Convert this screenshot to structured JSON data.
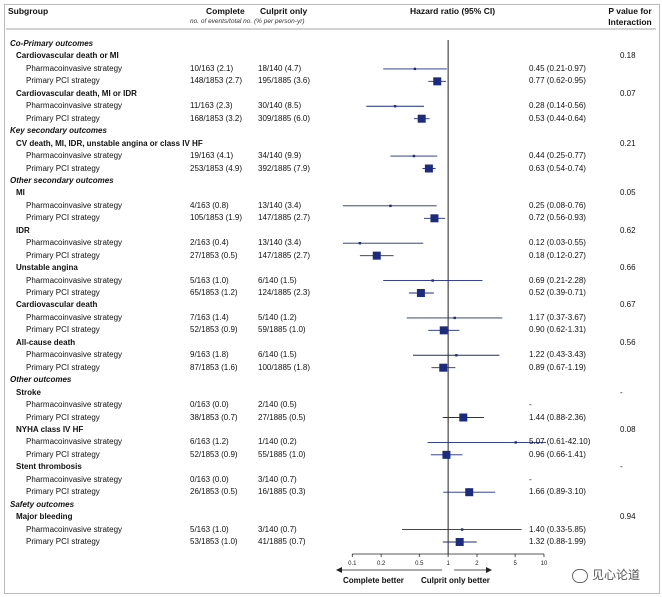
{
  "headers": {
    "subgroup": "Subgroup",
    "complete": "Complete",
    "culprit": "Culprit only",
    "hr": "Hazard ratio (95% CI)",
    "pval": "P value for Interaction",
    "pval_line1": "P value for",
    "pval_line2": "Interaction",
    "units": "no. of events/total no. (% per person-yr)"
  },
  "axis_labels": {
    "left": "Complete better",
    "right": "Culprit only better"
  },
  "watermark": "见心论道",
  "chart_data": {
    "type": "forest",
    "title": "",
    "xlabel": "Hazard ratio (95% CI)",
    "xscale": "log",
    "xlim": [
      0.08,
      10.5
    ],
    "ticks": [
      0.1,
      0.2,
      0.5,
      1,
      2,
      5,
      10
    ],
    "tick_labels": [
      "0.1",
      "0.2",
      "0.5",
      "1",
      "2",
      "5",
      "10"
    ],
    "reference_line": 1,
    "rows": [
      {
        "kind": "section",
        "label": "Co-Primary outcomes"
      },
      {
        "kind": "group",
        "label": "Cardiovascular death or MI",
        "p": "0.18"
      },
      {
        "kind": "data",
        "label": "Pharmacoinvasive strategy",
        "complete": "10/163 (2.1)",
        "culprit": "18/140 (4.7)",
        "hr": 0.45,
        "lo": 0.21,
        "hi": 0.97,
        "hr_text": "0.45 (0.21-0.97)",
        "size": "small"
      },
      {
        "kind": "data",
        "label": "Primary PCI strategy",
        "complete": "148/1853 (2.7)",
        "culprit": "195/1885 (3.6)",
        "hr": 0.77,
        "lo": 0.62,
        "hi": 0.95,
        "hr_text": "0.77 (0.62-0.95)",
        "size": "large"
      },
      {
        "kind": "group",
        "label": "Cardiovascular death, MI or IDR",
        "p": "0.07"
      },
      {
        "kind": "data",
        "label": "Pharmacoinvasive strategy",
        "complete": "11/163 (2.3)",
        "culprit": "30/140 (8.5)",
        "hr": 0.28,
        "lo": 0.14,
        "hi": 0.56,
        "hr_text": "0.28 (0.14-0.56)",
        "size": "small"
      },
      {
        "kind": "data",
        "label": "Primary PCI strategy",
        "complete": "168/1853 (3.2)",
        "culprit": "309/1885 (6.0)",
        "hr": 0.53,
        "lo": 0.44,
        "hi": 0.64,
        "hr_text": "0.53 (0.44-0.64)",
        "size": "large"
      },
      {
        "kind": "section",
        "label": "Key secondary outcomes"
      },
      {
        "kind": "group",
        "label": "CV death, MI, IDR, unstable angina or class IV HF",
        "p": "0.21"
      },
      {
        "kind": "data",
        "label": "Pharmacoinvasive strategy",
        "complete": "19/163 (4.1)",
        "culprit": "34/140 (9.9)",
        "hr": 0.44,
        "lo": 0.25,
        "hi": 0.77,
        "hr_text": "0.44 (0.25-0.77)",
        "size": "small"
      },
      {
        "kind": "data",
        "label": "Primary PCI strategy",
        "complete": "253/1853 (4.9)",
        "culprit": "392/1885 (7.9)",
        "hr": 0.63,
        "lo": 0.54,
        "hi": 0.74,
        "hr_text": "0.63 (0.54-0.74)",
        "size": "large"
      },
      {
        "kind": "section",
        "label": "Other secondary outcomes"
      },
      {
        "kind": "group",
        "label": "MI",
        "p": "0.05"
      },
      {
        "kind": "data",
        "label": "Pharmacoinvasive strategy",
        "complete": "4/163 (0.8)",
        "culprit": "13/140 (3.4)",
        "hr": 0.25,
        "lo": 0.08,
        "hi": 0.76,
        "hr_text": "0.25 (0.08-0.76)",
        "size": "small"
      },
      {
        "kind": "data",
        "label": "Primary PCI strategy",
        "complete": "105/1853 (1.9)",
        "culprit": "147/1885 (2.7)",
        "hr": 0.72,
        "lo": 0.56,
        "hi": 0.93,
        "hr_text": "0.72 (0.56-0.93)",
        "size": "large"
      },
      {
        "kind": "group",
        "label": "IDR",
        "p": "0.62"
      },
      {
        "kind": "data",
        "label": "Pharmacoinvasive strategy",
        "complete": "2/163 (0.4)",
        "culprit": "13/140 (3.4)",
        "hr": 0.12,
        "lo": 0.03,
        "hi": 0.55,
        "hr_text": "0.12 (0.03-0.55)",
        "size": "small"
      },
      {
        "kind": "data",
        "label": "Primary PCI strategy",
        "complete": "27/1853 (0.5)",
        "culprit": "147/1885 (2.7)",
        "hr": 0.18,
        "lo": 0.12,
        "hi": 0.27,
        "hr_text": "0.18 (0.12-0.27)",
        "size": "large"
      },
      {
        "kind": "group",
        "label": "Unstable angina",
        "p": "0.66"
      },
      {
        "kind": "data",
        "label": "Pharmacoinvasive strategy",
        "complete": "5/163 (1.0)",
        "culprit": "6/140 (1.5)",
        "hr": 0.69,
        "lo": 0.21,
        "hi": 2.28,
        "hr_text": "0.69 (0.21-2.28)",
        "size": "small"
      },
      {
        "kind": "data",
        "label": "Primary PCI strategy",
        "complete": "65/1853 (1.2)",
        "culprit": "124/1885 (2.3)",
        "hr": 0.52,
        "lo": 0.39,
        "hi": 0.71,
        "hr_text": "0.52 (0.39-0.71)",
        "size": "large"
      },
      {
        "kind": "group",
        "label": "Cardiovascular death",
        "p": "0.67"
      },
      {
        "kind": "data",
        "label": "Pharmacoinvasive strategy",
        "complete": "7/163 (1.4)",
        "culprit": "5/140 (1.2)",
        "hr": 1.17,
        "lo": 0.37,
        "hi": 3.67,
        "hr_text": "1.17 (0.37-3.67)",
        "size": "small"
      },
      {
        "kind": "data",
        "label": "Primary PCI strategy",
        "complete": "52/1853 (0.9)",
        "culprit": "59/1885 (1.0)",
        "hr": 0.9,
        "lo": 0.62,
        "hi": 1.31,
        "hr_text": "0.90 (0.62-1.31)",
        "size": "large"
      },
      {
        "kind": "group",
        "label": "All-cause death",
        "p": "0.56"
      },
      {
        "kind": "data",
        "label": "Pharmacoinvasive strategy",
        "complete": "9/163 (1.8)",
        "culprit": "6/140 (1.5)",
        "hr": 1.22,
        "lo": 0.43,
        "hi": 3.43,
        "hr_text": "1.22 (0.43-3.43)",
        "size": "small"
      },
      {
        "kind": "data",
        "label": "Primary PCI strategy",
        "complete": "87/1853 (1.6)",
        "culprit": "100/1885 (1.8)",
        "hr": 0.89,
        "lo": 0.67,
        "hi": 1.19,
        "hr_text": "0.89 (0.67-1.19)",
        "size": "large"
      },
      {
        "kind": "section",
        "label": "Other outcomes"
      },
      {
        "kind": "group",
        "label": "Stroke",
        "p": "-"
      },
      {
        "kind": "data",
        "label": "Pharmacoinvasive strategy",
        "complete": "0/163 (0.0)",
        "culprit": "2/140 (0.5)",
        "hr": null,
        "lo": null,
        "hi": null,
        "hr_text": "-",
        "size": "small"
      },
      {
        "kind": "data",
        "label": "Primary PCI strategy",
        "complete": "38/1853 (0.7)",
        "culprit": "27/1885 (0.5)",
        "hr": 1.44,
        "lo": 0.88,
        "hi": 2.36,
        "hr_text": "1.44 (0.88-2.36)",
        "size": "large"
      },
      {
        "kind": "group",
        "label": "NYHA class IV HF",
        "p": "0.08"
      },
      {
        "kind": "data",
        "label": "Pharmacoinvasive strategy",
        "complete": "6/163 (1.2)",
        "culprit": "1/140 (0.2)",
        "hr": 5.07,
        "lo": 0.61,
        "hi": 42.1,
        "hr_text": "5.07 (0.61-42.10)",
        "size": "small"
      },
      {
        "kind": "data",
        "label": "Primary PCI strategy",
        "complete": "52/1853 (0.9)",
        "culprit": "55/1885 (1.0)",
        "hr": 0.96,
        "lo": 0.66,
        "hi": 1.41,
        "hr_text": "0.96 (0.66-1.41)",
        "size": "large"
      },
      {
        "kind": "group",
        "label": "Stent thrombosis",
        "p": "-"
      },
      {
        "kind": "data",
        "label": "Pharmacoinvasive strategy",
        "complete": "0/163 (0.0)",
        "culprit": "3/140 (0.7)",
        "hr": null,
        "lo": null,
        "hi": null,
        "hr_text": "-",
        "size": "small"
      },
      {
        "kind": "data",
        "label": "Primary PCI strategy",
        "complete": "26/1853 (0.5)",
        "culprit": "16/1885 (0.3)",
        "hr": 1.66,
        "lo": 0.89,
        "hi": 3.1,
        "hr_text": "1.66 (0.89-3.10)",
        "size": "large"
      },
      {
        "kind": "section",
        "label": "Safety outcomes"
      },
      {
        "kind": "group",
        "label": "Major bleeding",
        "p": "0.94"
      },
      {
        "kind": "data",
        "label": "Pharmacoinvasive strategy",
        "complete": "5/163 (1.0)",
        "culprit": "3/140 (0.7)",
        "hr": 1.4,
        "lo": 0.33,
        "hi": 5.85,
        "hr_text": "1.40 (0.33-5.85)",
        "size": "small"
      },
      {
        "kind": "data",
        "label": "Primary PCI strategy",
        "complete": "53/1853 (1.0)",
        "culprit": "41/1885 (0.7)",
        "hr": 1.32,
        "lo": 0.88,
        "hi": 1.99,
        "hr_text": "1.32 (0.88-1.99)",
        "size": "large"
      }
    ]
  }
}
